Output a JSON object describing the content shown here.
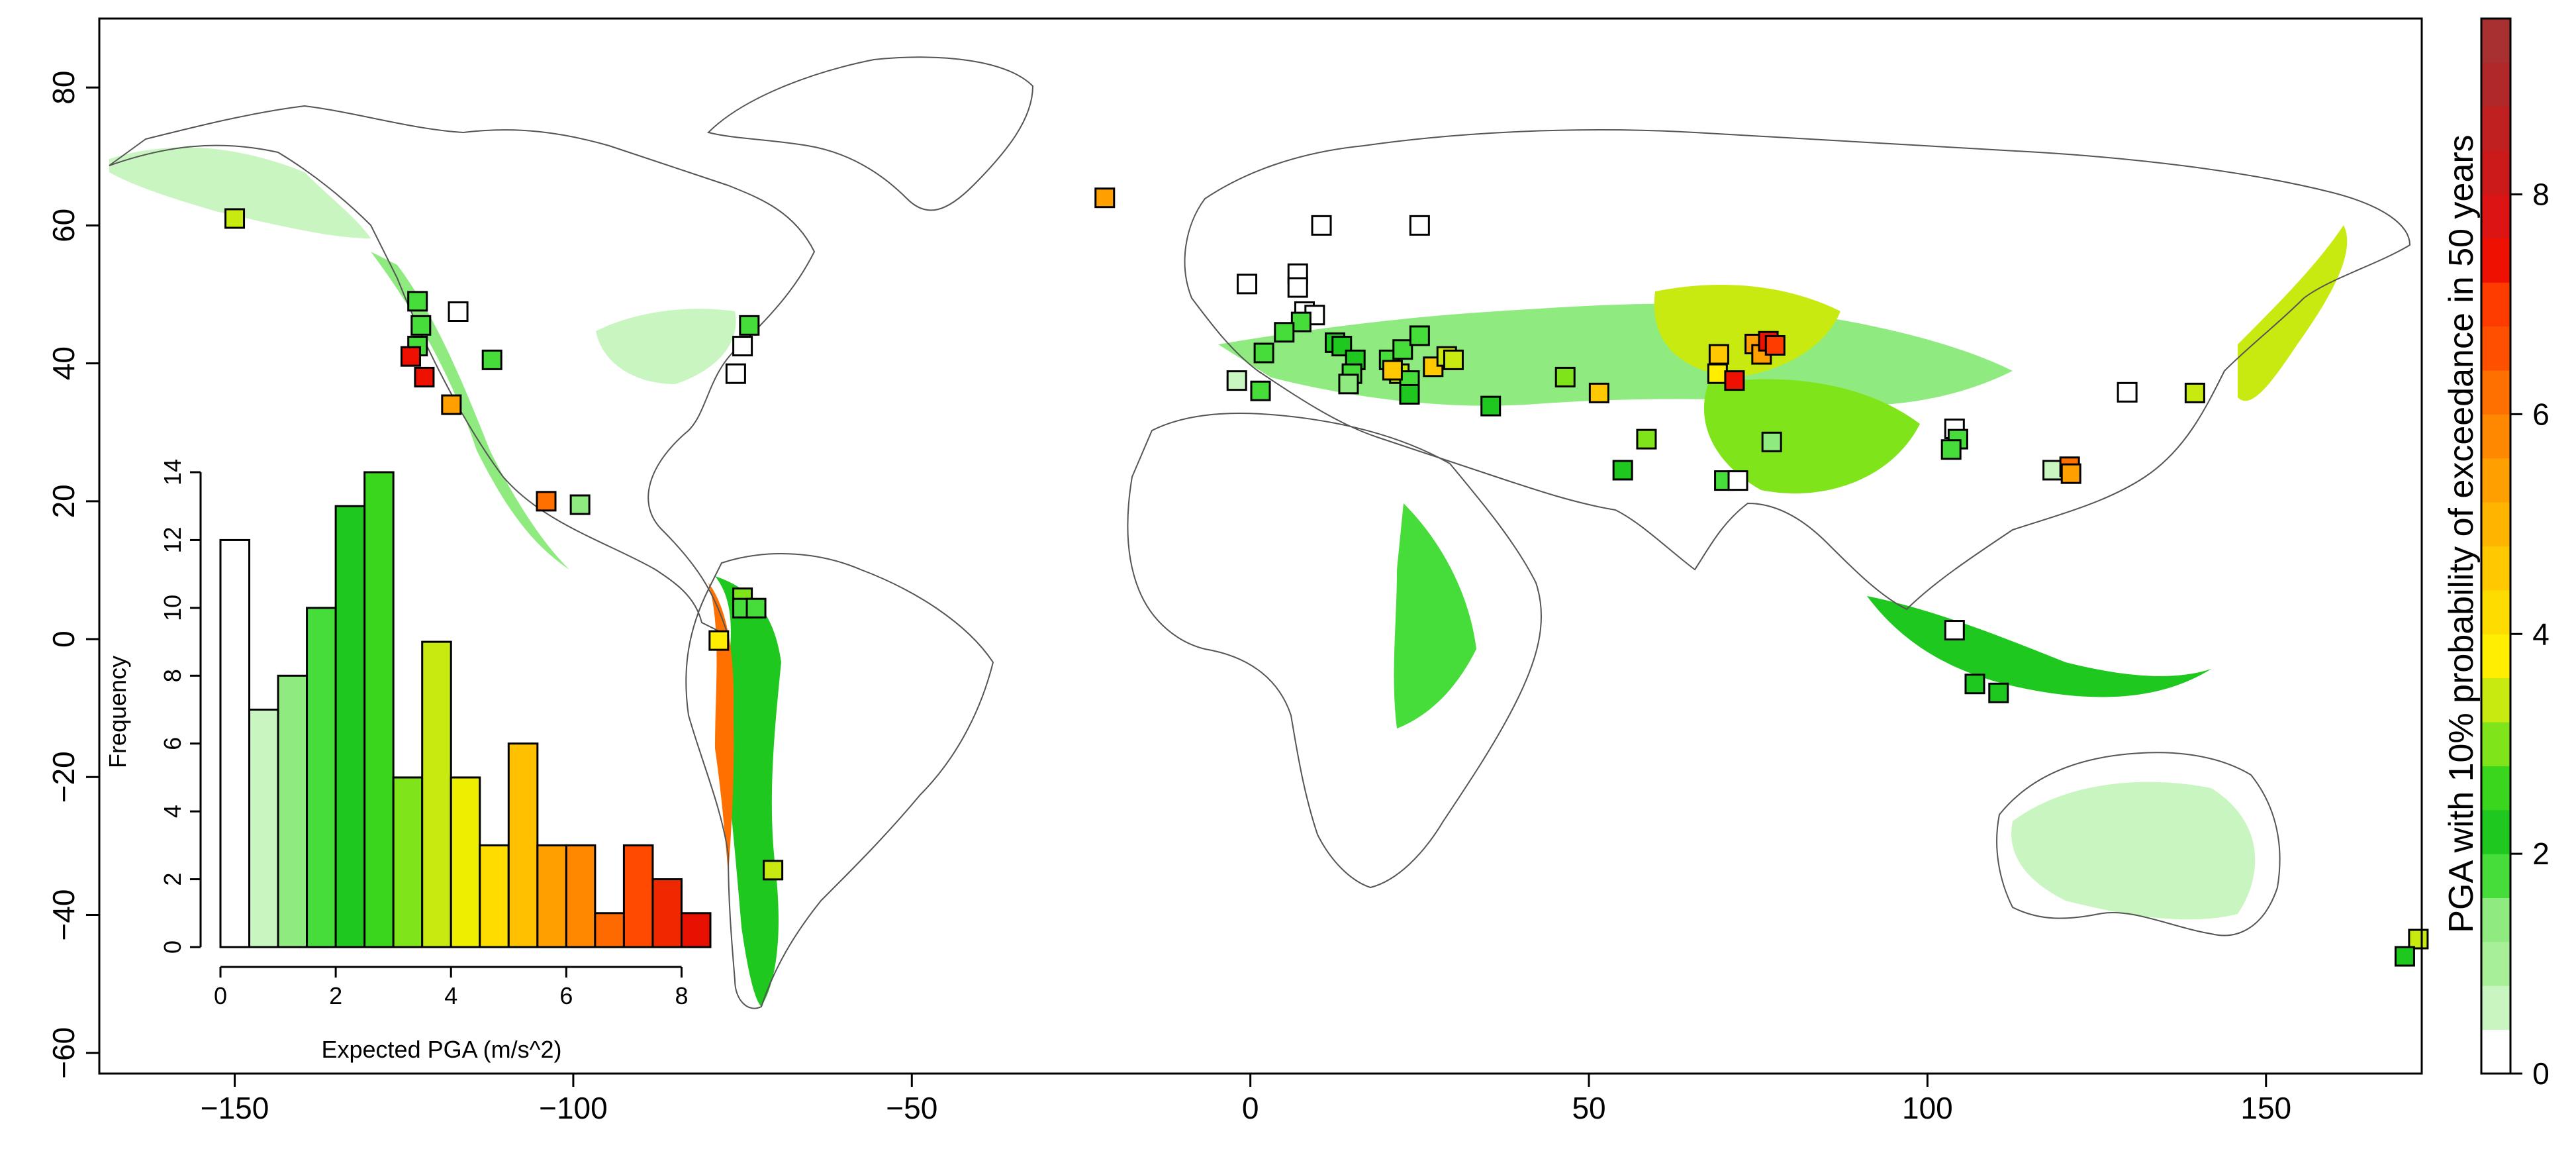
{
  "map": {
    "xlim": [
      -170,
      173
    ],
    "ylim": [
      -63,
      90
    ],
    "x_ticks": [
      -150,
      -100,
      -50,
      0,
      50,
      100,
      150
    ],
    "y_ticks": [
      -60,
      -40,
      -20,
      0,
      20,
      40,
      60,
      80
    ],
    "x_tick_labels": [
      "−150",
      "−100",
      "−50",
      "0",
      "50",
      "100",
      "150"
    ],
    "y_tick_labels": [
      "−60",
      "−40",
      "−20",
      "0",
      "20",
      "40",
      "60",
      "80"
    ],
    "coastline_color": "#555555",
    "hazard_colors": [
      "#ffffff",
      "#c8f5c0",
      "#8fea80",
      "#46dd3a",
      "#1ec81e",
      "#7fe51a",
      "#c8ea10",
      "#ffee00",
      "#ffc800",
      "#ffa000",
      "#ff7000",
      "#ff3c00",
      "#ee1000",
      "#c02020"
    ],
    "stations": [
      {
        "lon": -150,
        "lat": 61,
        "color": "#c8ea10"
      },
      {
        "lon": -123,
        "lat": 49,
        "color": "#46dd3a"
      },
      {
        "lon": -122.5,
        "lat": 45.5,
        "color": "#46dd3a"
      },
      {
        "lon": -123,
        "lat": 42.5,
        "color": "#46dd3a"
      },
      {
        "lon": -124,
        "lat": 41,
        "color": "#ee1000"
      },
      {
        "lon": -122,
        "lat": 38,
        "color": "#ee1000"
      },
      {
        "lon": -118,
        "lat": 34,
        "color": "#ffa000"
      },
      {
        "lon": -117,
        "lat": 47.5,
        "color": "#ffffff"
      },
      {
        "lon": -112,
        "lat": 40.5,
        "color": "#46dd3a"
      },
      {
        "lon": -74,
        "lat": 45.5,
        "color": "#46dd3a"
      },
      {
        "lon": -75,
        "lat": 42.5,
        "color": "#ffffff"
      },
      {
        "lon": -76,
        "lat": 38.5,
        "color": "#ffffff"
      },
      {
        "lon": -104,
        "lat": 20,
        "color": "#ff7000"
      },
      {
        "lon": -99,
        "lat": 19.5,
        "color": "#8fea80"
      },
      {
        "lon": -75,
        "lat": 6,
        "color": "#7fe51a"
      },
      {
        "lon": -75,
        "lat": 4.5,
        "color": "#46dd3a"
      },
      {
        "lon": -73,
        "lat": 4.5,
        "color": "#46dd3a"
      },
      {
        "lon": -78.5,
        "lat": -0.2,
        "color": "#ffee00"
      },
      {
        "lon": -70.5,
        "lat": -33.5,
        "color": "#c8ea10"
      },
      {
        "lon": -21.5,
        "lat": 64,
        "color": "#ffa000"
      },
      {
        "lon": -0.5,
        "lat": 51.5,
        "color": "#ffffff"
      },
      {
        "lon": 10.5,
        "lat": 60,
        "color": "#ffffff"
      },
      {
        "lon": 25,
        "lat": 60,
        "color": "#ffffff"
      },
      {
        "lon": 7,
        "lat": 53,
        "color": "#ffffff"
      },
      {
        "lon": 7,
        "lat": 51,
        "color": "#ffffff"
      },
      {
        "lon": 8,
        "lat": 47.5,
        "color": "#ffffff"
      },
      {
        "lon": 9.5,
        "lat": 47,
        "color": "#ffffff"
      },
      {
        "lon": 7.5,
        "lat": 46,
        "color": "#46dd3a"
      },
      {
        "lon": 5,
        "lat": 44.5,
        "color": "#46dd3a"
      },
      {
        "lon": 2,
        "lat": 41.5,
        "color": "#46dd3a"
      },
      {
        "lon": -2,
        "lat": 37.5,
        "color": "#c8f5c0"
      },
      {
        "lon": 1.5,
        "lat": 36,
        "color": "#46dd3a"
      },
      {
        "lon": 12.5,
        "lat": 43,
        "color": "#1ec81e"
      },
      {
        "lon": 13.5,
        "lat": 42.5,
        "color": "#1ec81e"
      },
      {
        "lon": 15.5,
        "lat": 40.5,
        "color": "#1ec81e"
      },
      {
        "lon": 15,
        "lat": 38.5,
        "color": "#46dd3a"
      },
      {
        "lon": 14.5,
        "lat": 37,
        "color": "#8fea80"
      },
      {
        "lon": 20.5,
        "lat": 40.5,
        "color": "#46dd3a"
      },
      {
        "lon": 22.5,
        "lat": 42,
        "color": "#46dd3a"
      },
      {
        "lon": 25,
        "lat": 44,
        "color": "#46dd3a"
      },
      {
        "lon": 22,
        "lat": 38.5,
        "color": "#c8ea10"
      },
      {
        "lon": 23.5,
        "lat": 37.5,
        "color": "#46dd3a"
      },
      {
        "lon": 23.5,
        "lat": 35.5,
        "color": "#1ec81e"
      },
      {
        "lon": 21,
        "lat": 39,
        "color": "#ffc800"
      },
      {
        "lon": 27,
        "lat": 39.5,
        "color": "#ffc800"
      },
      {
        "lon": 29,
        "lat": 41,
        "color": "#c8ea10"
      },
      {
        "lon": 30,
        "lat": 40.5,
        "color": "#c8ea10"
      },
      {
        "lon": 35.5,
        "lat": 33.8,
        "color": "#1ec81e"
      },
      {
        "lon": 46.5,
        "lat": 38,
        "color": "#7fe51a"
      },
      {
        "lon": 51.5,
        "lat": 35.7,
        "color": "#ffc800"
      },
      {
        "lon": 58.5,
        "lat": 29,
        "color": "#7fe51a"
      },
      {
        "lon": 55,
        "lat": 24.5,
        "color": "#1ec81e"
      },
      {
        "lon": 69.2,
        "lat": 41.3,
        "color": "#ffc800"
      },
      {
        "lon": 69,
        "lat": 38.5,
        "color": "#ffee00"
      },
      {
        "lon": 71.5,
        "lat": 37.5,
        "color": "#ee1000"
      },
      {
        "lon": 74.5,
        "lat": 42.8,
        "color": "#ffa000"
      },
      {
        "lon": 75.5,
        "lat": 41.3,
        "color": "#ffa000"
      },
      {
        "lon": 76.5,
        "lat": 43.2,
        "color": "#ee1000"
      },
      {
        "lon": 77.5,
        "lat": 42.6,
        "color": "#ff3c00"
      },
      {
        "lon": 70,
        "lat": 23,
        "color": "#46dd3a"
      },
      {
        "lon": 72,
        "lat": 23,
        "color": "#ffffff"
      },
      {
        "lon": 77,
        "lat": 28.6,
        "color": "#8fea80"
      },
      {
        "lon": 104,
        "lat": 30.5,
        "color": "#ffffff"
      },
      {
        "lon": 104.5,
        "lat": 29,
        "color": "#46dd3a"
      },
      {
        "lon": 103.5,
        "lat": 27.5,
        "color": "#46dd3a"
      },
      {
        "lon": 129.5,
        "lat": 35.8,
        "color": "#ffffff"
      },
      {
        "lon": 139.5,
        "lat": 35.7,
        "color": "#c8ea10"
      },
      {
        "lon": 118.5,
        "lat": 24.5,
        "color": "#c8f5c0"
      },
      {
        "lon": 121,
        "lat": 25,
        "color": "#ff7000"
      },
      {
        "lon": 121.2,
        "lat": 24,
        "color": "#ffa000"
      },
      {
        "lon": 104,
        "lat": 1.3,
        "color": "#ffffff"
      },
      {
        "lon": 107,
        "lat": -6.5,
        "color": "#1ec81e"
      },
      {
        "lon": 110.5,
        "lat": -7.8,
        "color": "#1ec81e"
      },
      {
        "lon": 172.5,
        "lat": -43.5,
        "color": "#c8ea10"
      },
      {
        "lon": 170.5,
        "lat": -46,
        "color": "#1ec81e"
      }
    ]
  },
  "colorbar": {
    "label": "PGA with 10% probability of exceedance in 50 years",
    "min": 0,
    "max": 9.6,
    "ticks": [
      0,
      2,
      4,
      6,
      8
    ],
    "colors": [
      "#ffffff",
      "#c8f5c0",
      "#a8f098",
      "#8fea80",
      "#46dd3a",
      "#1ec81e",
      "#3ad61e",
      "#7fe51a",
      "#c8ea10",
      "#ffee00",
      "#ffdc00",
      "#ffc800",
      "#ffb400",
      "#ffa000",
      "#ff8800",
      "#ff7000",
      "#ff5000",
      "#ff3c00",
      "#ee1000",
      "#dd1414",
      "#cc1a1a",
      "#c02020",
      "#b02828",
      "#a83030"
    ]
  },
  "chart_data": {
    "type": "bar",
    "xlabel": "Expected PGA (m/s^2)",
    "ylabel": "Frequency",
    "xlim": [
      0,
      8.5
    ],
    "ylim": [
      0,
      14
    ],
    "x_ticks": [
      0,
      2,
      4,
      6,
      8
    ],
    "y_ticks": [
      0,
      2,
      4,
      6,
      8,
      10,
      12,
      14
    ],
    "bins": [
      {
        "x0": 0.0,
        "x1": 0.5,
        "count": 12,
        "color": "#ffffff"
      },
      {
        "x0": 0.5,
        "x1": 1.0,
        "count": 7,
        "color": "#c8f5c0"
      },
      {
        "x0": 1.0,
        "x1": 1.5,
        "count": 8,
        "color": "#8fea80"
      },
      {
        "x0": 1.5,
        "x1": 2.0,
        "count": 10,
        "color": "#46dd3a"
      },
      {
        "x0": 2.0,
        "x1": 2.5,
        "count": 13,
        "color": "#1ec81e"
      },
      {
        "x0": 2.5,
        "x1": 3.0,
        "count": 14,
        "color": "#3ad61e"
      },
      {
        "x0": 3.0,
        "x1": 3.5,
        "count": 5,
        "color": "#7fe51a"
      },
      {
        "x0": 3.5,
        "x1": 4.0,
        "count": 9,
        "color": "#c8ea10"
      },
      {
        "x0": 4.0,
        "x1": 4.5,
        "count": 5,
        "color": "#eeee00"
      },
      {
        "x0": 4.5,
        "x1": 5.0,
        "count": 3,
        "color": "#ffdc00"
      },
      {
        "x0": 5.0,
        "x1": 5.5,
        "count": 6,
        "color": "#ffc000"
      },
      {
        "x0": 5.5,
        "x1": 6.0,
        "count": 3,
        "color": "#ffa000"
      },
      {
        "x0": 6.0,
        "x1": 6.5,
        "count": 3,
        "color": "#ff8800"
      },
      {
        "x0": 6.5,
        "x1": 7.0,
        "count": 1,
        "color": "#ff6a00"
      },
      {
        "x0": 7.0,
        "x1": 7.5,
        "count": 3,
        "color": "#ff4a00"
      },
      {
        "x0": 7.5,
        "x1": 8.0,
        "count": 2,
        "color": "#f02800"
      },
      {
        "x0": 8.0,
        "x1": 8.5,
        "count": 1,
        "color": "#e81000"
      }
    ]
  }
}
